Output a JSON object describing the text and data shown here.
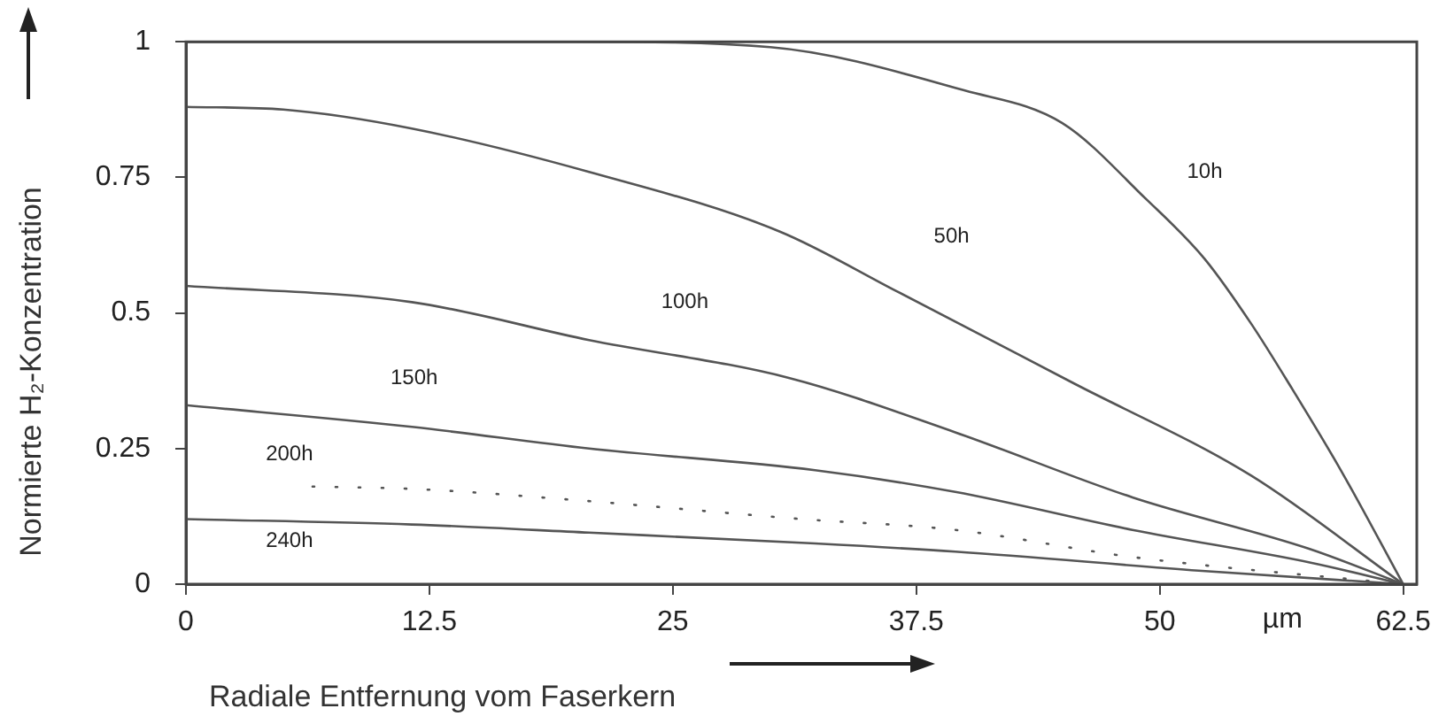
{
  "chart_data": {
    "type": "line",
    "xlabel": "Radiale Entfernung vom Faserkern",
    "ylabel": "Normierte H₂-Konzentration",
    "xlim": [
      0,
      63.2
    ],
    "ylim": [
      0,
      1
    ],
    "xticks": [
      0,
      12.5,
      25,
      37.5,
      50,
      62.5
    ],
    "yticks": [
      0,
      0.25,
      0.5,
      0.75,
      1
    ],
    "grid": false,
    "legend": false,
    "marker": "none",
    "annotations": [
      "µm"
    ],
    "series": [
      {
        "name": "10h",
        "color": "#555555",
        "x": [
          0,
          20,
          30,
          40,
          45,
          49.3,
          52.3,
          54.7,
          56.8,
          59.3,
          62.5
        ],
        "values": [
          1,
          1,
          0.99,
          0.91,
          0.85,
          0.71,
          0.6,
          0.48,
          0.36,
          0.21,
          0
        ]
      },
      {
        "name": "50h",
        "color": "#555555",
        "x": [
          0,
          5,
          11.6,
          20.7,
          30.5,
          36.5,
          45.6,
          54.7,
          62.5
        ],
        "values": [
          0.88,
          0.875,
          0.84,
          0.76,
          0.65,
          0.54,
          0.37,
          0.2,
          0
        ]
      },
      {
        "name": "100h",
        "color": "#555555",
        "x": [
          0,
          11.6,
          20.7,
          31,
          39.5,
          48.6,
          57.7,
          62.5
        ],
        "values": [
          0.55,
          0.52,
          0.45,
          0.38,
          0.28,
          0.16,
          0.065,
          0
        ]
      },
      {
        "name": "150h",
        "color": "#555555",
        "x": [
          0,
          11.6,
          20.7,
          32.3,
          39.5,
          48.6,
          57.7,
          62.5
        ],
        "values": [
          0.33,
          0.29,
          0.25,
          0.21,
          0.17,
          0.1,
          0.04,
          0
        ]
      },
      {
        "name": "200h",
        "color": "#555555",
        "line_style": "dotted",
        "x": [
          6.5,
          12,
          20,
          31.6,
          39.5,
          48.6,
          62.5
        ],
        "values": [
          0.18,
          0.175,
          0.155,
          0.12,
          0.1,
          0.05,
          0
        ]
      },
      {
        "name": "240h",
        "color": "#555555",
        "x": [
          0,
          11.6,
          20.7,
          32.3,
          39.5,
          52,
          62.5
        ],
        "values": [
          0.12,
          0.11,
          0.095,
          0.075,
          0.06,
          0.025,
          0
        ]
      }
    ]
  }
}
